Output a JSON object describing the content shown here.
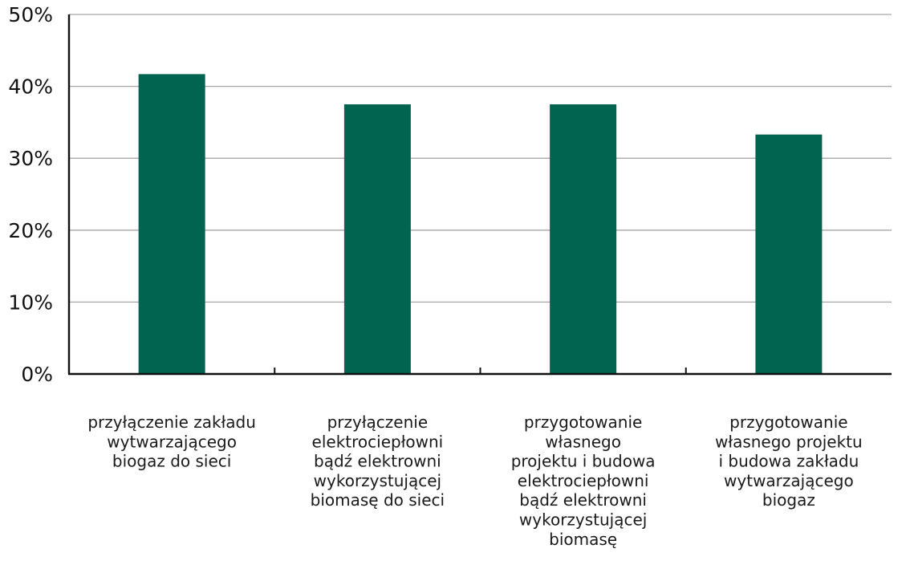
{
  "chart_data": {
    "type": "bar",
    "categories": [
      [
        "przyłączenie zakładu",
        "wytwarzającego",
        "biogaz do sieci"
      ],
      [
        "przyłączenie",
        "elektrociepłowni",
        "bądź elektrowni",
        "wykorzystującej",
        "biomasę do sieci"
      ],
      [
        "przygotowanie",
        "własnego",
        "projektu i budowa",
        "elektrociepłowni",
        "bądź elektrowni",
        "wykorzystującej",
        "biomasę"
      ],
      [
        "przygotowanie",
        "własnego projektu",
        "i budowa zakładu",
        "wytwarzającego",
        "biogaz"
      ]
    ],
    "values": [
      41.7,
      37.5,
      37.5,
      33.3
    ],
    "yticks": [
      "0%",
      "10%",
      "20%",
      "30%",
      "40%",
      "50%"
    ],
    "ylim": [
      0,
      50
    ],
    "title": "",
    "xlabel": "",
    "ylabel": "",
    "grid": true,
    "colors": {
      "bar": "#006450",
      "grid": "#a6a6a6",
      "axis": "#111111"
    }
  }
}
